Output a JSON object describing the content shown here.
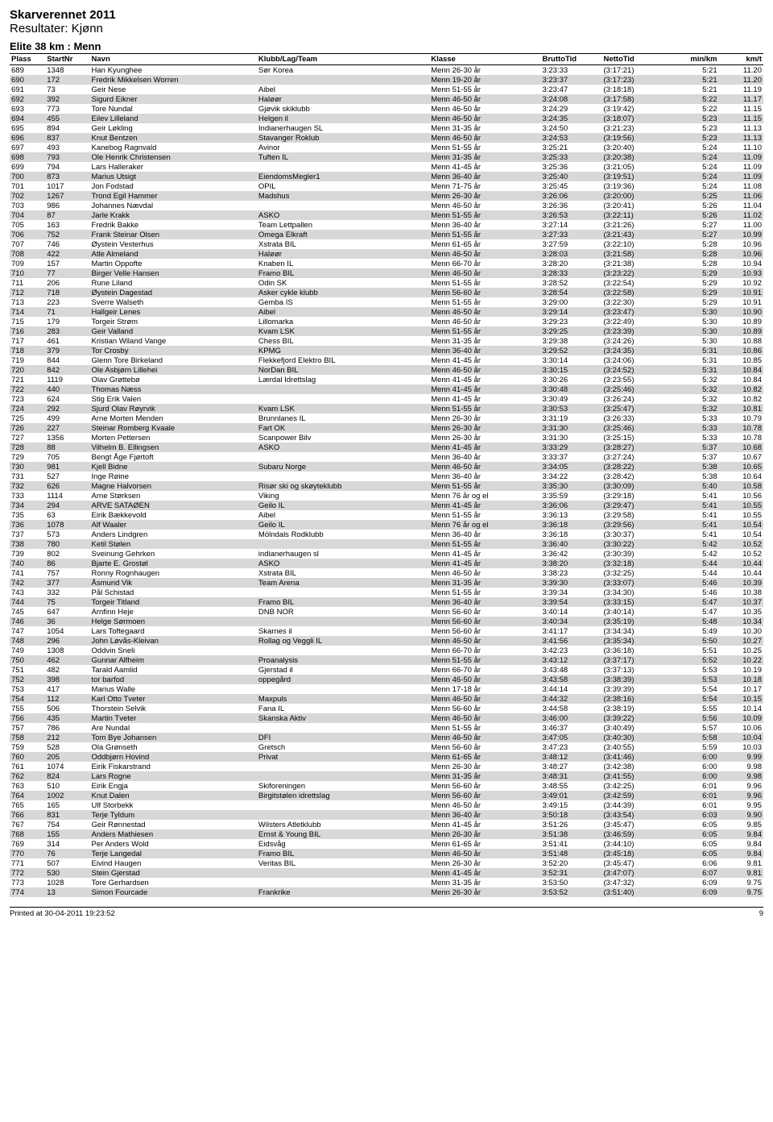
{
  "header": {
    "title": "Skarverennet 2011",
    "subtitle": "Resultater: Kjønn",
    "category": "Elite 38 km : Menn"
  },
  "table": {
    "columns": [
      "Plass",
      "StartNr",
      "Navn",
      "Klubb/Lag/Team",
      "Klasse",
      "BruttoTid",
      "NettoTid",
      "min/km",
      "km/t"
    ],
    "rows": [
      [
        "689",
        "1348",
        "Han Kyunghee",
        "Sør Korea",
        "Menn 26-30 år",
        "3:23:33",
        "(3:17:21)",
        "5:21",
        "11.20"
      ],
      [
        "690",
        "172",
        "Fredrik Mikkelsen Worren",
        "",
        "Menn 19-20 år",
        "3:23:37",
        "(3:17:23)",
        "5:21",
        "11.20"
      ],
      [
        "691",
        "73",
        "Geir Nese",
        "Aibel",
        "Menn 51-55 år",
        "3:23:47",
        "(3:18:18)",
        "5:21",
        "11.19"
      ],
      [
        "692",
        "392",
        "Sigurd Eikner",
        "Haløør",
        "Menn 46-50 år",
        "3:24:08",
        "(3:17:58)",
        "5:22",
        "11.17"
      ],
      [
        "693",
        "773",
        "Tore Nundal",
        "Gjøvik skiklubb",
        "Menn 46-50 år",
        "3:24:29",
        "(3:19:42)",
        "5:22",
        "11.15"
      ],
      [
        "694",
        "455",
        "Eilev Lilleland",
        "Helgen il",
        "Menn 46-50 år",
        "3:24:35",
        "(3:18:07)",
        "5:23",
        "11.15"
      ],
      [
        "695",
        "894",
        "Geir Løkling",
        "Indianerhaugen SL",
        "Menn 31-35 år",
        "3:24:50",
        "(3:21:23)",
        "5:23",
        "11.13"
      ],
      [
        "696",
        "837",
        "Knut Bentzen",
        "Stavanger Roklub",
        "Menn 46-50 år",
        "3:24:53",
        "(3:19:56)",
        "5:23",
        "11.13"
      ],
      [
        "697",
        "493",
        "Kanebog Ragnvald",
        "Avinor",
        "Menn 51-55 år",
        "3:25:21",
        "(3:20:40)",
        "5:24",
        "11.10"
      ],
      [
        "698",
        "793",
        "Ole Henrik Christensen",
        "Tuften IL",
        "Menn 31-35 år",
        "3:25:33",
        "(3:20:38)",
        "5:24",
        "11.09"
      ],
      [
        "699",
        "794",
        "Lars Halleraker",
        "",
        "Menn 41-45 år",
        "3:25:36",
        "(3:21:05)",
        "5:24",
        "11.09"
      ],
      [
        "700",
        "873",
        "Marius Utsigt",
        "EiendomsMegler1",
        "Menn 36-40 år",
        "3:25:40",
        "(3:19:51)",
        "5:24",
        "11.09"
      ],
      [
        "701",
        "1017",
        "Jon Fodstad",
        "OPIL",
        "Menn 71-75 år",
        "3:25:45",
        "(3:19:36)",
        "5:24",
        "11.08"
      ],
      [
        "702",
        "1267",
        "Trond Egil Hammer",
        "Madshus",
        "Menn 26-30 år",
        "3:26:06",
        "(3:20:00)",
        "5:25",
        "11.06"
      ],
      [
        "703",
        "986",
        "Johannes Nævdal",
        "",
        "Menn 46-50 år",
        "3:26:36",
        "(3:20:41)",
        "5:26",
        "11.04"
      ],
      [
        "704",
        "87",
        "Jarle Krakk",
        "ASKO",
        "Menn 51-55 år",
        "3:26:53",
        "(3:22:11)",
        "5:26",
        "11.02"
      ],
      [
        "705",
        "163",
        "Fredrik Bakke",
        "Team Lettpallen",
        "Menn 36-40 år",
        "3:27:14",
        "(3:21:26)",
        "5:27",
        "11.00"
      ],
      [
        "706",
        "752",
        "Frank Steinar Olsen",
        "Omega Elkraft",
        "Menn 51-55 år",
        "3:27:33",
        "(3:21:43)",
        "5:27",
        "10.99"
      ],
      [
        "707",
        "746",
        "Øystein Vesterhus",
        "Xstrata BIL",
        "Menn 61-65 år",
        "3:27:59",
        "(3:22:10)",
        "5:28",
        "10.96"
      ],
      [
        "708",
        "422",
        "Atle Almeland",
        "Haløør",
        "Menn 46-50 år",
        "3:28:03",
        "(3:21:58)",
        "5:28",
        "10.96"
      ],
      [
        "709",
        "157",
        "Martin Oppofte",
        "Knaben IL",
        "Menn 66-70 år",
        "3:28:20",
        "(3:21:38)",
        "5:28",
        "10.94"
      ],
      [
        "710",
        "77",
        "Birger Velle Hansen",
        "Framo BIL",
        "Menn 46-50 år",
        "3:28:33",
        "(3:23:22)",
        "5:29",
        "10.93"
      ],
      [
        "711",
        "206",
        "Rune Liland",
        "Odin SK",
        "Menn 51-55 år",
        "3:28:52",
        "(3:22:54)",
        "5:29",
        "10.92"
      ],
      [
        "712",
        "718",
        "Øystein Dagestad",
        "Asker cykle klubb",
        "Menn 56-60 år",
        "3:28:54",
        "(3:22:58)",
        "5:29",
        "10.91"
      ],
      [
        "713",
        "223",
        "Sverre Walseth",
        "Gemba IS",
        "Menn 51-55 år",
        "3:29:00",
        "(3:22:30)",
        "5:29",
        "10.91"
      ],
      [
        "714",
        "71",
        "Hallgeir Lenes",
        "Aibel",
        "Menn 46-50 år",
        "3:29:14",
        "(3:23:47)",
        "5:30",
        "10.90"
      ],
      [
        "715",
        "179",
        "Torgeir Strøm",
        "Lillomarka",
        "Menn 46-50 år",
        "3:29:23",
        "(3:22:49)",
        "5:30",
        "10.89"
      ],
      [
        "716",
        "283",
        "Geir Valland",
        "Kvam LSK",
        "Menn 51-55 år",
        "3:29:25",
        "(3:23:39)",
        "5:30",
        "10.89"
      ],
      [
        "717",
        "461",
        "Kristian Wiland Vange",
        "Chess BIL",
        "Menn 31-35 år",
        "3:29:38",
        "(3:24:26)",
        "5:30",
        "10.88"
      ],
      [
        "718",
        "379",
        "Tor Crosby",
        "KPMG",
        "Menn 36-40 år",
        "3:29:52",
        "(3:24:35)",
        "5:31",
        "10.86"
      ],
      [
        "719",
        "844",
        "Glenn Tore Birkeland",
        "Flekkefjord Elektro BIL",
        "Menn 41-45 år",
        "3:30:14",
        "(3:24:06)",
        "5:31",
        "10.85"
      ],
      [
        "720",
        "842",
        "Ole Asbjørn Lillehei",
        "NorDan BIL",
        "Menn 46-50 år",
        "3:30:15",
        "(3:24:52)",
        "5:31",
        "10.84"
      ],
      [
        "721",
        "1119",
        "Olav Grøttebø",
        "Lærdal Idrettslag",
        "Menn 41-45 år",
        "3:30:26",
        "(3:23:55)",
        "5:32",
        "10.84"
      ],
      [
        "722",
        "440",
        "Thomas Næss",
        "",
        "Menn 41-45 år",
        "3:30:48",
        "(3:25:46)",
        "5:32",
        "10.82"
      ],
      [
        "723",
        "624",
        "Stig Erik Valen",
        "",
        "Menn 41-45 år",
        "3:30:49",
        "(3:26:24)",
        "5:32",
        "10.82"
      ],
      [
        "724",
        "292",
        "Sjurd Olav Røyrvik",
        "Kvam LSK",
        "Menn 51-55 år",
        "3:30:53",
        "(3:25:47)",
        "5:32",
        "10.81"
      ],
      [
        "725",
        "499",
        "Arne Morten Menden",
        "Brunnlanes IL",
        "Menn 26-30 år",
        "3:31:19",
        "(3:26:33)",
        "5:33",
        "10.79"
      ],
      [
        "726",
        "227",
        "Steinar Romberg Kvaale",
        "Fart OK",
        "Menn 26-30 år",
        "3:31:30",
        "(3:25:46)",
        "5:33",
        "10.78"
      ],
      [
        "727",
        "1356",
        "Morten Pettersen",
        "Scanpower Bilv",
        "Menn 26-30 år",
        "3:31:30",
        "(3:25:15)",
        "5:33",
        "10.78"
      ],
      [
        "728",
        "88",
        "Vilhelm B. Ellingsen",
        "ASKO",
        "Menn 41-45 år",
        "3:33:29",
        "(3:28:27)",
        "5:37",
        "10.68"
      ],
      [
        "729",
        "705",
        "Bengt Åge Fjørtoft",
        "",
        "Menn 36-40 år",
        "3:33:37",
        "(3:27:24)",
        "5:37",
        "10.67"
      ],
      [
        "730",
        "981",
        "Kjell Bidne",
        "Subaru Norge",
        "Menn 46-50 år",
        "3:34:05",
        "(3:28:22)",
        "5:38",
        "10.65"
      ],
      [
        "731",
        "527",
        "Inge Røine",
        "",
        "Menn 36-40 år",
        "3:34:22",
        "(3:28:42)",
        "5:38",
        "10.64"
      ],
      [
        "732",
        "626",
        "Magne Halvorsen",
        "Risør ski og skøyteklubb",
        "Menn 51-55 år",
        "3:35:30",
        "(3:30:09)",
        "5:40",
        "10.58"
      ],
      [
        "733",
        "1114",
        "Arne Størksen",
        "Viking",
        "Menn 76 år og el",
        "3:35:59",
        "(3:29:18)",
        "5:41",
        "10.56"
      ],
      [
        "734",
        "294",
        "ARVE SATAØEN",
        "Geilo IL",
        "Menn 41-45 år",
        "3:36:06",
        "(3:29:47)",
        "5:41",
        "10.55"
      ],
      [
        "735",
        "63",
        "Eirik Bækkevold",
        "Aibel",
        "Menn 51-55 år",
        "3:36:13",
        "(3:29:58)",
        "5:41",
        "10.55"
      ],
      [
        "736",
        "1078",
        "Alf Waaler",
        "Geilo IL",
        "Menn 76 år og el",
        "3:36:18",
        "(3:29:56)",
        "5:41",
        "10.54"
      ],
      [
        "737",
        "573",
        "Anders Lindgren",
        "Mölndals Rodklubb",
        "Menn 36-40 år",
        "3:36:18",
        "(3:30:37)",
        "5:41",
        "10.54"
      ],
      [
        "738",
        "780",
        "Ketil Stølen",
        "",
        "Menn 51-55 år",
        "3:36:40",
        "(3:30:22)",
        "5:42",
        "10.52"
      ],
      [
        "739",
        "802",
        "Sveinung Gehrken",
        "indianerhaugen sl",
        "Menn 41-45 år",
        "3:36:42",
        "(3:30:39)",
        "5:42",
        "10.52"
      ],
      [
        "740",
        "86",
        "Bjarte E. Grostøl",
        "ASKO",
        "Menn 41-45 år",
        "3:38:20",
        "(3:32:18)",
        "5:44",
        "10.44"
      ],
      [
        "741",
        "757",
        "Ronny Rognhaugen",
        "Xstrata BIL",
        "Menn 46-50 år",
        "3:38:23",
        "(3:32:25)",
        "5:44",
        "10.44"
      ],
      [
        "742",
        "377",
        "Åsmund Vik",
        "Team Arena",
        "Menn 31-35 år",
        "3:39:30",
        "(3:33:07)",
        "5:46",
        "10.39"
      ],
      [
        "743",
        "332",
        "Pål Schistad",
        "",
        "Menn 51-55 år",
        "3:39:34",
        "(3:34:30)",
        "5:46",
        "10.38"
      ],
      [
        "744",
        "75",
        "Torgeir Titland",
        "Framo BIL",
        "Menn 36-40 år",
        "3:39:54",
        "(3:33:15)",
        "5:47",
        "10.37"
      ],
      [
        "745",
        "647",
        "Arnfinn Heje",
        "DNB NOR",
        "Menn 56-60 år",
        "3:40:14",
        "(3:40:14)",
        "5:47",
        "10.35"
      ],
      [
        "746",
        "36",
        "Helge Sørmoen",
        "",
        "Menn 56-60 år",
        "3:40:34",
        "(3:35:19)",
        "5:48",
        "10.34"
      ],
      [
        "747",
        "1054",
        "Lars Toftegaard",
        "Skarnes il",
        "Menn 56-60 år",
        "3:41:17",
        "(3:34:34)",
        "5:49",
        "10.30"
      ],
      [
        "748",
        "296",
        "John Løvås-Kleivan",
        "Rollag og Veggli IL",
        "Menn 46-50 år",
        "3:41:56",
        "(3:35:34)",
        "5:50",
        "10.27"
      ],
      [
        "749",
        "1308",
        "Oddvin Sneli",
        "",
        "Menn 66-70 år",
        "3:42:23",
        "(3:36:18)",
        "5:51",
        "10.25"
      ],
      [
        "750",
        "462",
        "Gunnar Alfheim",
        "Proanalysis",
        "Menn 51-55 år",
        "3:43:12",
        "(3:37:17)",
        "5:52",
        "10.22"
      ],
      [
        "751",
        "482",
        "Tarald Aamlid",
        "Gjerstad il",
        "Menn 66-70 år",
        "3:43:48",
        "(3:37:13)",
        "5:53",
        "10.19"
      ],
      [
        "752",
        "398",
        "tor barfod",
        "oppegård",
        "Menn 46-50 år",
        "3:43:58",
        "(3:38:39)",
        "5:53",
        "10.18"
      ],
      [
        "753",
        "417",
        "Marius Walle",
        "",
        "Menn 17-18 år",
        "3:44:14",
        "(3:39:39)",
        "5:54",
        "10.17"
      ],
      [
        "754",
        "112",
        "Karl Otto Tveter",
        "Maxpuls",
        "Menn 46-50 år",
        "3:44:32",
        "(3:38:16)",
        "5:54",
        "10.15"
      ],
      [
        "755",
        "506",
        "Thorstein Selvik",
        "Fana IL",
        "Menn 56-60 år",
        "3:44:58",
        "(3:38:19)",
        "5:55",
        "10.14"
      ],
      [
        "756",
        "435",
        "Martin Tveter",
        "Skanska Aktiv",
        "Menn 46-50 år",
        "3:46:00",
        "(3:39:22)",
        "5:56",
        "10.09"
      ],
      [
        "757",
        "786",
        "Are Nundal",
        "",
        "Menn 51-55 år",
        "3:46:37",
        "(3:40:49)",
        "5:57",
        "10.06"
      ],
      [
        "758",
        "212",
        "Tom Bye Johansen",
        "DFI",
        "Menn 46-50 år",
        "3:47:05",
        "(3:40:30)",
        "5:58",
        "10.04"
      ],
      [
        "759",
        "528",
        "Ola Grønseth",
        "Gretsch",
        "Menn 56-60 år",
        "3:47:23",
        "(3:40:55)",
        "5:59",
        "10.03"
      ],
      [
        "760",
        "205",
        "Oddbjørn Hovind",
        "Privat",
        "Menn 61-65 år",
        "3:48:12",
        "(3:41:46)",
        "6:00",
        "9.99"
      ],
      [
        "761",
        "1074",
        "Eirik Fiskarstrand",
        "",
        "Menn 26-30 år",
        "3:48:27",
        "(3:42:38)",
        "6:00",
        "9.98"
      ],
      [
        "762",
        "824",
        "Lars Rogne",
        "",
        "Menn 31-35 år",
        "3:48:31",
        "(3:41:55)",
        "6:00",
        "9.98"
      ],
      [
        "763",
        "510",
        "Eirik Engja",
        "Skiforeningen",
        "Menn 56-60 år",
        "3:48:55",
        "(3:42:25)",
        "6:01",
        "9.96"
      ],
      [
        "764",
        "1002",
        "Knut Dalen",
        "Birgitstølen idrettslag",
        "Menn 56-60 år",
        "3:49:01",
        "(3:42:59)",
        "6:01",
        "9.96"
      ],
      [
        "765",
        "165",
        "Ulf Storbekk",
        "",
        "Menn 46-50 år",
        "3:49:15",
        "(3:44:39)",
        "6:01",
        "9.95"
      ],
      [
        "766",
        "831",
        "Terje Tyldum",
        "",
        "Menn 36-40 år",
        "3:50:18",
        "(3:43:54)",
        "6:03",
        "9.90"
      ],
      [
        "767",
        "754",
        "Geir Rønnestad",
        "Wilsters Atletklubb",
        "Menn 41-45 år",
        "3:51:26",
        "(3:45:47)",
        "6:05",
        "9.85"
      ],
      [
        "768",
        "155",
        "Anders Mathiesen",
        "Ernst & Young BIL",
        "Menn 26-30 år",
        "3:51:38",
        "(3:46:59)",
        "6:05",
        "9.84"
      ],
      [
        "769",
        "314",
        "Per Anders Wold",
        "Eidsvåg",
        "Menn 61-65 år",
        "3:51:41",
        "(3:44:10)",
        "6:05",
        "9.84"
      ],
      [
        "770",
        "76",
        "Terje Langedal",
        "Framo BIL",
        "Menn 46-50 år",
        "3:51:48",
        "(3:45:18)",
        "6:05",
        "9.84"
      ],
      [
        "771",
        "507",
        "Eivind Haugen",
        "Veritas BIL",
        "Menn 26-30 år",
        "3:52:20",
        "(3:45:47)",
        "6:06",
        "9.81"
      ],
      [
        "772",
        "530",
        "Stein Gjerstad",
        "",
        "Menn 41-45 år",
        "3:52:31",
        "(3:47:07)",
        "6:07",
        "9.81"
      ],
      [
        "773",
        "1028",
        "Tore Gerhardsen",
        "",
        "Menn 31-35 år",
        "3:53:50",
        "(3:47:32)",
        "6:09",
        "9.75"
      ],
      [
        "774",
        "13",
        "Simon Fourcade",
        "Frankrike",
        "Menn 26-30 år",
        "3:53:52",
        "(3:51:40)",
        "6:09",
        "9.75"
      ]
    ]
  },
  "footer": {
    "printed": "Printed at 30-04-2011 19:23:52",
    "page": "9"
  }
}
